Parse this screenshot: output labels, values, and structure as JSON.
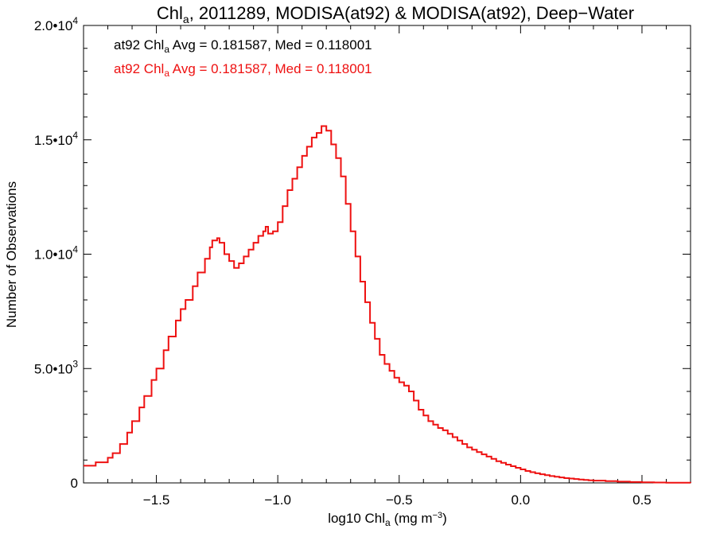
{
  "chart_data": {
    "type": "line",
    "step": true,
    "title": {
      "prefix": "Chl",
      "prefix_sub": "a",
      "rest": ", 2011289, MODISA(at92) & MODISA(at92), Deep−Water"
    },
    "xlabel": {
      "prefix": "log10 Chl",
      "sub": "a",
      "mid": " (mg m",
      "sup": "−3",
      "suffix": ")"
    },
    "ylabel": "Number of Observations",
    "xlim": [
      -1.8,
      0.7
    ],
    "ylim": [
      0,
      20000
    ],
    "xticks": [
      {
        "value": -1.5,
        "label": "−1.5"
      },
      {
        "value": -1.0,
        "label": "−1.0"
      },
      {
        "value": -0.5,
        "label": "−0.5"
      },
      {
        "value": 0.0,
        "label": "0.0"
      },
      {
        "value": 0.5,
        "label": "0.5"
      }
    ],
    "yticks": [
      {
        "value": 0,
        "mant": "0",
        "exp": ""
      },
      {
        "value": 5000,
        "mant": "5.0•10",
        "exp": "3"
      },
      {
        "value": 10000,
        "mant": "1.0•10",
        "exp": "4"
      },
      {
        "value": 15000,
        "mant": "1.5•10",
        "exp": "4"
      },
      {
        "value": 20000,
        "mant": "2.0•10",
        "exp": "4"
      }
    ],
    "annotations": [
      {
        "color": "#000000",
        "prefix": "at92 Chl",
        "sub": "a",
        "rest": " Avg = 0.181587, Med = 0.118001"
      },
      {
        "color": "#ee1111",
        "prefix": "at92 Chl",
        "sub": "a",
        "rest": " Avg = 0.181587, Med = 0.118001"
      }
    ],
    "grid": false,
    "series": [
      {
        "color": "#ee1111",
        "points": [
          [
            -1.8,
            750
          ],
          [
            -1.75,
            900
          ],
          [
            -1.7,
            1100
          ],
          [
            -1.68,
            1300
          ],
          [
            -1.65,
            1700
          ],
          [
            -1.62,
            2200
          ],
          [
            -1.6,
            2700
          ],
          [
            -1.57,
            3300
          ],
          [
            -1.55,
            3800
          ],
          [
            -1.52,
            4500
          ],
          [
            -1.5,
            5000
          ],
          [
            -1.47,
            5800
          ],
          [
            -1.45,
            6400
          ],
          [
            -1.42,
            7100
          ],
          [
            -1.4,
            7600
          ],
          [
            -1.38,
            8000
          ],
          [
            -1.35,
            8600
          ],
          [
            -1.33,
            9200
          ],
          [
            -1.3,
            9800
          ],
          [
            -1.28,
            10300
          ],
          [
            -1.27,
            10600
          ],
          [
            -1.25,
            10700
          ],
          [
            -1.24,
            10500
          ],
          [
            -1.22,
            10000
          ],
          [
            -1.2,
            9700
          ],
          [
            -1.18,
            9400
          ],
          [
            -1.16,
            9600
          ],
          [
            -1.14,
            9900
          ],
          [
            -1.12,
            10200
          ],
          [
            -1.1,
            10500
          ],
          [
            -1.08,
            10800
          ],
          [
            -1.06,
            11000
          ],
          [
            -1.05,
            11200
          ],
          [
            -1.04,
            10900
          ],
          [
            -1.02,
            11000
          ],
          [
            -1.0,
            11400
          ],
          [
            -0.98,
            12100
          ],
          [
            -0.96,
            12800
          ],
          [
            -0.94,
            13300
          ],
          [
            -0.92,
            13800
          ],
          [
            -0.9,
            14300
          ],
          [
            -0.88,
            14700
          ],
          [
            -0.86,
            15100
          ],
          [
            -0.84,
            15300
          ],
          [
            -0.82,
            15600
          ],
          [
            -0.8,
            15400
          ],
          [
            -0.78,
            14800
          ],
          [
            -0.76,
            14200
          ],
          [
            -0.74,
            13400
          ],
          [
            -0.72,
            12200
          ],
          [
            -0.7,
            11000
          ],
          [
            -0.68,
            9900
          ],
          [
            -0.66,
            8800
          ],
          [
            -0.64,
            7900
          ],
          [
            -0.62,
            7000
          ],
          [
            -0.6,
            6300
          ],
          [
            -0.58,
            5600
          ],
          [
            -0.56,
            5200
          ],
          [
            -0.54,
            4900
          ],
          [
            -0.52,
            4600
          ],
          [
            -0.5,
            4400
          ],
          [
            -0.48,
            4250
          ],
          [
            -0.46,
            4000
          ],
          [
            -0.44,
            3600
          ],
          [
            -0.42,
            3200
          ],
          [
            -0.4,
            2950
          ],
          [
            -0.38,
            2700
          ],
          [
            -0.36,
            2550
          ],
          [
            -0.34,
            2400
          ],
          [
            -0.32,
            2300
          ],
          [
            -0.3,
            2150
          ],
          [
            -0.28,
            2000
          ],
          [
            -0.26,
            1850
          ],
          [
            -0.24,
            1700
          ],
          [
            -0.22,
            1550
          ],
          [
            -0.2,
            1450
          ],
          [
            -0.18,
            1350
          ],
          [
            -0.16,
            1250
          ],
          [
            -0.14,
            1150
          ],
          [
            -0.12,
            1050
          ],
          [
            -0.1,
            950
          ],
          [
            -0.08,
            880
          ],
          [
            -0.06,
            800
          ],
          [
            -0.04,
            730
          ],
          [
            -0.02,
            660
          ],
          [
            0.0,
            590
          ],
          [
            0.02,
            520
          ],
          [
            0.04,
            470
          ],
          [
            0.06,
            420
          ],
          [
            0.08,
            380
          ],
          [
            0.1,
            340
          ],
          [
            0.12,
            300
          ],
          [
            0.14,
            270
          ],
          [
            0.16,
            240
          ],
          [
            0.18,
            210
          ],
          [
            0.2,
            190
          ],
          [
            0.22,
            170
          ],
          [
            0.24,
            150
          ],
          [
            0.26,
            130
          ],
          [
            0.28,
            115
          ],
          [
            0.3,
            100
          ],
          [
            0.35,
            75
          ],
          [
            0.4,
            55
          ],
          [
            0.45,
            40
          ],
          [
            0.5,
            28
          ],
          [
            0.55,
            18
          ],
          [
            0.6,
            12
          ],
          [
            0.65,
            6
          ],
          [
            0.7,
            3
          ]
        ]
      }
    ]
  }
}
